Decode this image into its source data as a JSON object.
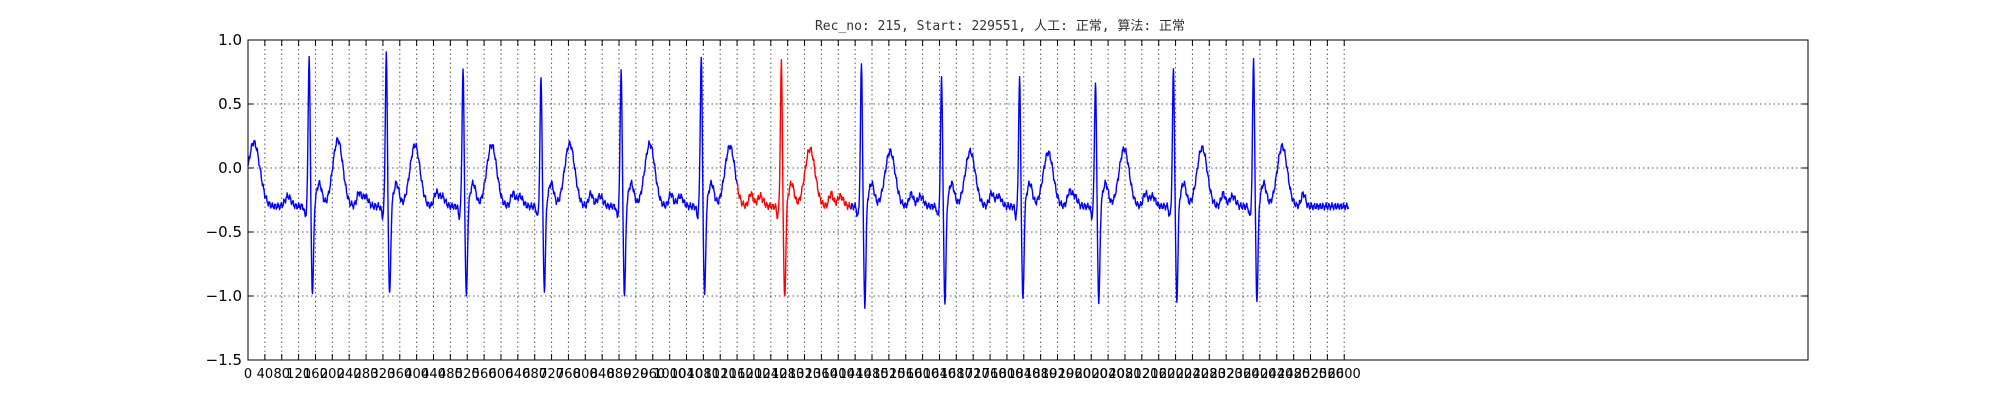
{
  "chart_data": {
    "type": "line",
    "title": "Rec_no: 215, Start: 229551, 人工: 正常, 算法: 正常",
    "xlabel": "",
    "ylabel": "",
    "xlim": [
      0,
      3700
    ],
    "ylim": [
      -1.5,
      1.0
    ],
    "grid": true,
    "legend": "none",
    "yticks": [
      -1.5,
      -1.0,
      -0.5,
      0.0,
      0.5,
      1.0
    ],
    "ytick_labels": [
      "−1.5",
      "−1.0",
      "−0.5",
      "0.0",
      "0.5",
      "1.0"
    ],
    "xticks": [
      0,
      40,
      80,
      120,
      160,
      200,
      240,
      280,
      320,
      360,
      400,
      440,
      480,
      520,
      560,
      600,
      640,
      680,
      720,
      760,
      800,
      840,
      880,
      920,
      960,
      1000,
      1040,
      1080,
      1120,
      1160,
      1200,
      1240,
      1280,
      1320,
      1360,
      1400,
      1440,
      1480,
      1520,
      1560,
      1600,
      1640,
      1680,
      1720,
      1760,
      1800,
      1840,
      1880,
      1920,
      1960,
      2000,
      2040,
      2080,
      2120,
      2160,
      2200,
      2240,
      2280,
      2320,
      2360,
      2400,
      2440,
      2480,
      2520,
      2560,
      2600
    ],
    "xtick_labels": [
      "0",
      "40",
      "80",
      "120",
      "160",
      "200",
      "240",
      "280",
      "320",
      "360",
      "400",
      "440",
      "480",
      "520",
      "560",
      "600",
      "640",
      "680",
      "720",
      "760",
      "800",
      "840",
      "880",
      "920",
      "960",
      "1000",
      "1040",
      "1080",
      "1120",
      "1160",
      "1200",
      "1240",
      "1280",
      "1320",
      "1360",
      "1400",
      "1440",
      "1480",
      "1520",
      "1560",
      "1600",
      "1640",
      "1680",
      "1720",
      "1760",
      "1800",
      "1840",
      "1880",
      "1920",
      "1960",
      "2000",
      "2040",
      "2080",
      "2120",
      "2160",
      "2200",
      "2240",
      "2280",
      "2320",
      "2360",
      "2400",
      "2440",
      "2480",
      "2520",
      "2560",
      "2600"
    ],
    "beats": [
      {
        "r": 145,
        "amp": 0.88,
        "s": -0.96,
        "t": 0.22,
        "highlight": false
      },
      {
        "r": 328,
        "amp": 0.9,
        "s": -0.97,
        "t": 0.18,
        "highlight": false
      },
      {
        "r": 510,
        "amp": 0.78,
        "s": -0.98,
        "t": 0.18,
        "highlight": false
      },
      {
        "r": 695,
        "amp": 0.72,
        "s": -0.93,
        "t": 0.19,
        "highlight": false
      },
      {
        "r": 885,
        "amp": 0.78,
        "s": -0.97,
        "t": 0.19,
        "highlight": false
      },
      {
        "r": 1075,
        "amp": 0.88,
        "s": -0.97,
        "t": 0.17,
        "highlight": false
      },
      {
        "r": 1265,
        "amp": 0.82,
        "s": -1.0,
        "t": 0.15,
        "highlight": true
      },
      {
        "r": 1455,
        "amp": 0.82,
        "s": -1.05,
        "t": 0.13,
        "highlight": false
      },
      {
        "r": 1645,
        "amp": 0.72,
        "s": -1.03,
        "t": 0.13,
        "highlight": false
      },
      {
        "r": 1830,
        "amp": 0.7,
        "s": -1.01,
        "t": 0.12,
        "highlight": false
      },
      {
        "r": 2010,
        "amp": 0.68,
        "s": -1.03,
        "t": 0.15,
        "highlight": false
      },
      {
        "r": 2195,
        "amp": 0.78,
        "s": -1.01,
        "t": 0.16,
        "highlight": false
      },
      {
        "r": 2385,
        "amp": 0.86,
        "s": -1.01,
        "t": 0.17,
        "highlight": false
      }
    ],
    "signal_end": 2610,
    "baseline": -0.3,
    "highlight_range": [
      1160,
      1430
    ],
    "series": [
      {
        "color": "#0000ff",
        "segment": "normal"
      },
      {
        "color": "#ff0000",
        "segment": "highlight"
      }
    ]
  }
}
